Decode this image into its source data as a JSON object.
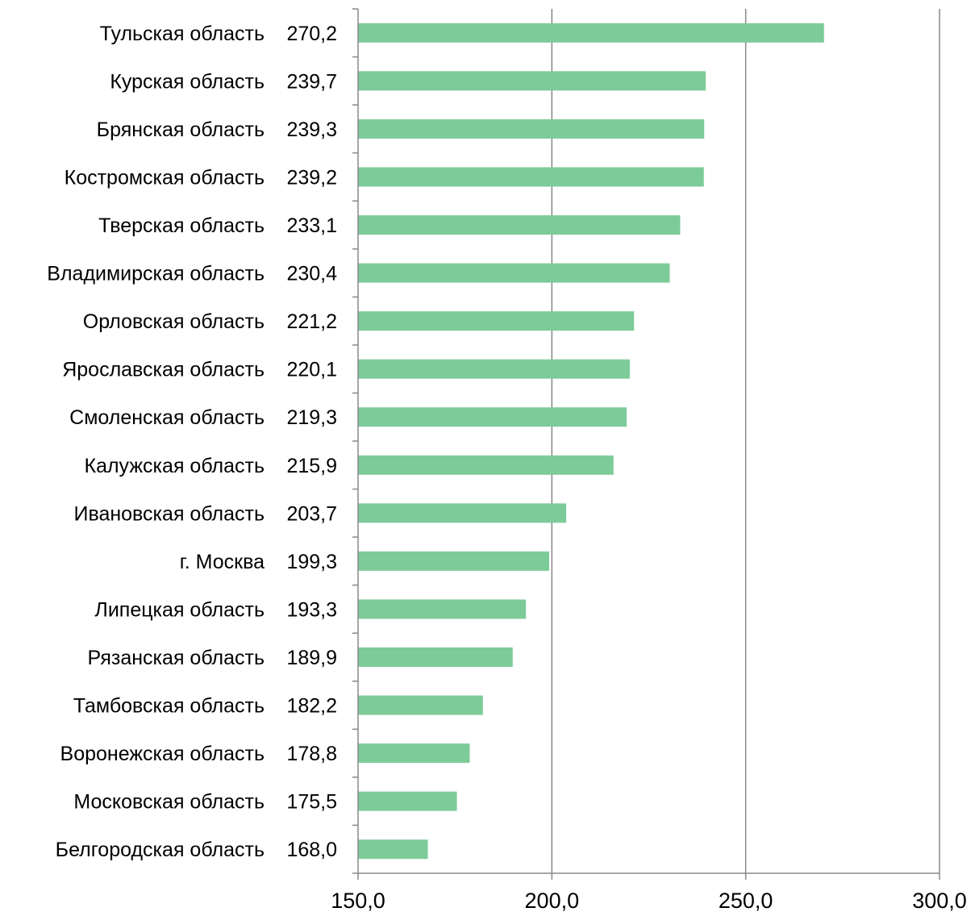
{
  "chart_data": {
    "type": "bar",
    "orientation": "horizontal",
    "categories": [
      "Тульская область",
      "Курская область",
      "Брянская область",
      "Костромская область",
      "Тверская область",
      "Владимирская область",
      "Орловская область",
      "Ярославская область",
      "Смоленская область",
      "Калужская область",
      "Ивановская область",
      "г. Москва",
      "Липецкая область",
      "Рязанская область",
      "Тамбовская область",
      "Воронежская область",
      "Московская область",
      "Белгородская область"
    ],
    "values": [
      270.2,
      239.7,
      239.3,
      239.2,
      233.1,
      230.4,
      221.2,
      220.1,
      219.3,
      215.9,
      203.7,
      199.3,
      193.3,
      189.9,
      182.2,
      178.8,
      175.5,
      168.0
    ],
    "value_labels": [
      "270,2",
      "239,7",
      "239,3",
      "239,2",
      "233,1",
      "230,4",
      "221,2",
      "220,1",
      "219,3",
      "215,9",
      "203,7",
      "199,3",
      "193,3",
      "189,9",
      "182,2",
      "178,8",
      "175,5",
      "168,0"
    ],
    "x_ticks": [
      150,
      200,
      250,
      300
    ],
    "x_tick_labels": [
      "150,0",
      "200,0",
      "250,0",
      "300,0"
    ],
    "xlim": [
      150,
      300
    ],
    "grid": "vertical",
    "bar_color": "#7DCB99",
    "grid_color": "#888888",
    "title": "",
    "xlabel": "",
    "ylabel": ""
  }
}
